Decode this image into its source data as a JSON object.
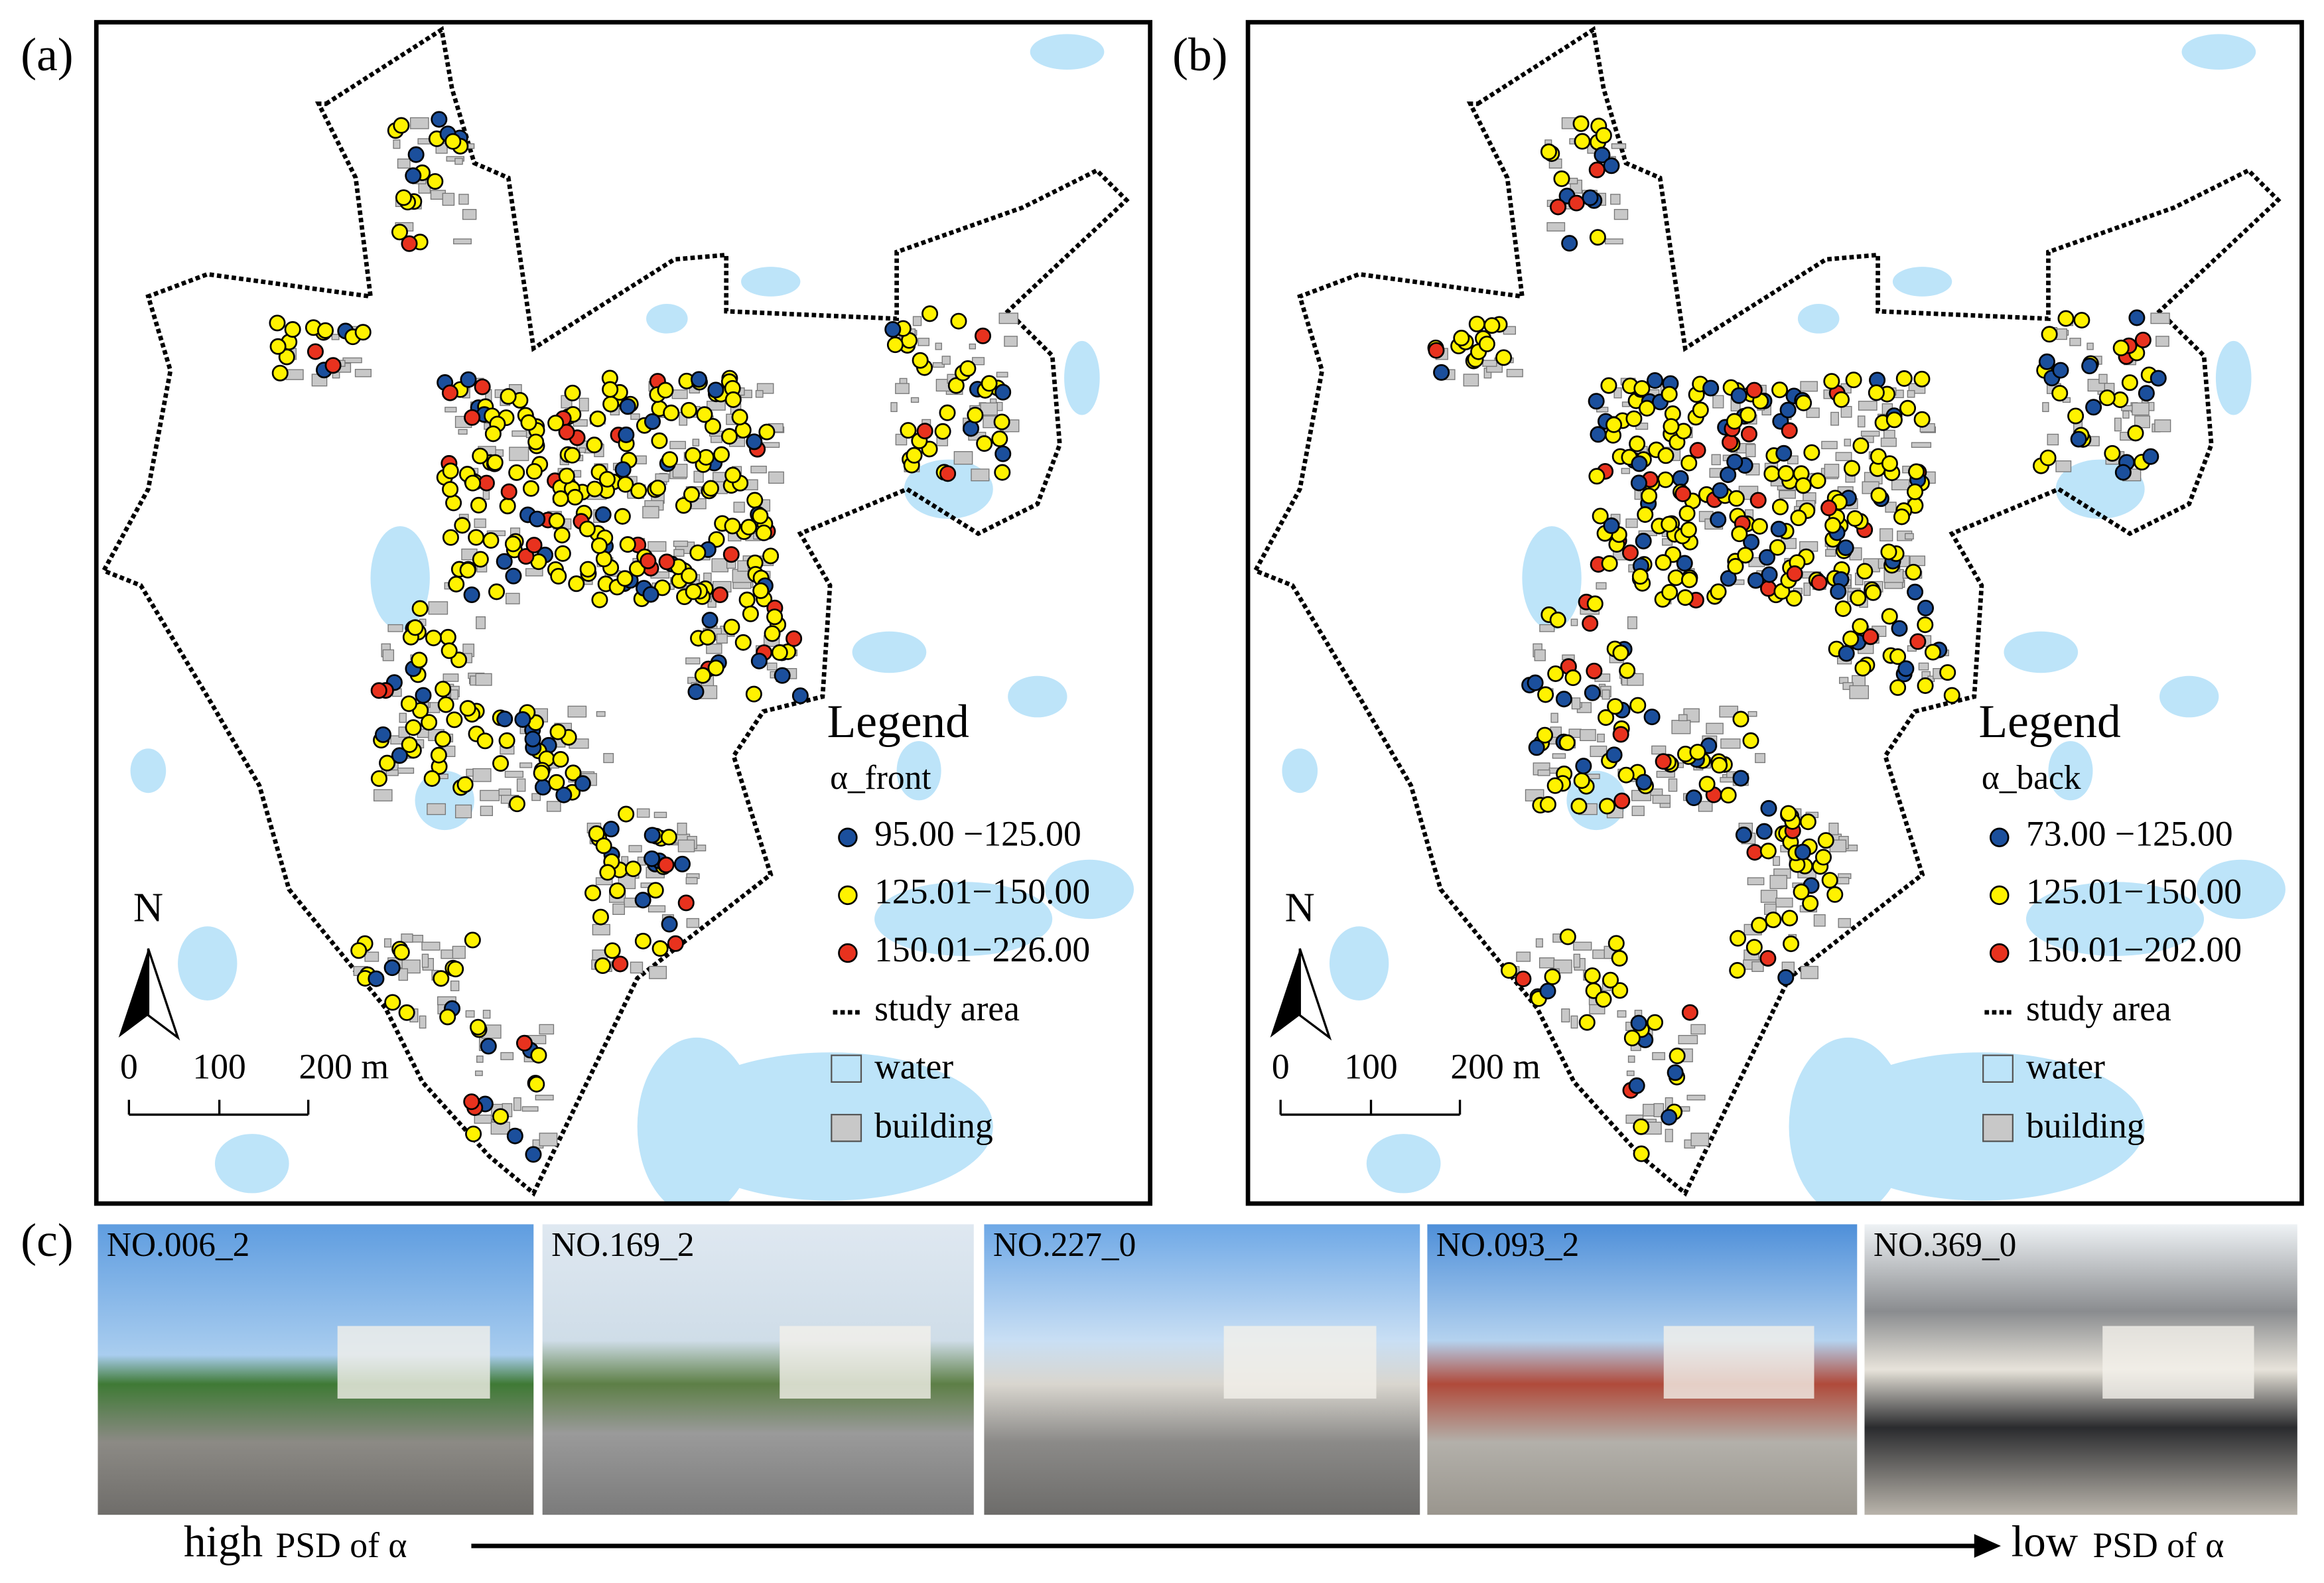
{
  "panels": [
    {
      "label": "(a)",
      "legend": {
        "title": "Legend",
        "field": "α_front",
        "classes": [
          {
            "label": "95.00 −125.00",
            "color": "#1b4f9c"
          },
          {
            "label": "125.01−150.00",
            "color": "#fff200"
          },
          {
            "label": "150.01−226.00",
            "color": "#e8321e"
          }
        ],
        "study_area": "study area",
        "water": "water",
        "building": "building"
      },
      "north": "N",
      "scale": [
        "0",
        "100",
        "200 m"
      ]
    },
    {
      "label": "(b)",
      "legend": {
        "title": "Legend",
        "field": "α_back",
        "classes": [
          {
            "label": "73.00 −125.00",
            "color": "#1b4f9c"
          },
          {
            "label": "125.01−150.00",
            "color": "#fff200"
          },
          {
            "label": "150.01−202.00",
            "color": "#e8321e"
          }
        ],
        "study_area": "study area",
        "water": "water",
        "building": "building"
      },
      "north": "N",
      "scale": [
        "0",
        "100",
        "200 m"
      ]
    }
  ],
  "photos": {
    "label": "(c)",
    "items": [
      "NO.006_2",
      "NO.169_2",
      "NO.227_0",
      "NO.093_2",
      "NO.369_0"
    ],
    "axis": {
      "left": [
        "high",
        "PSD of α"
      ],
      "right": [
        "low",
        "PSD of α"
      ]
    }
  }
}
